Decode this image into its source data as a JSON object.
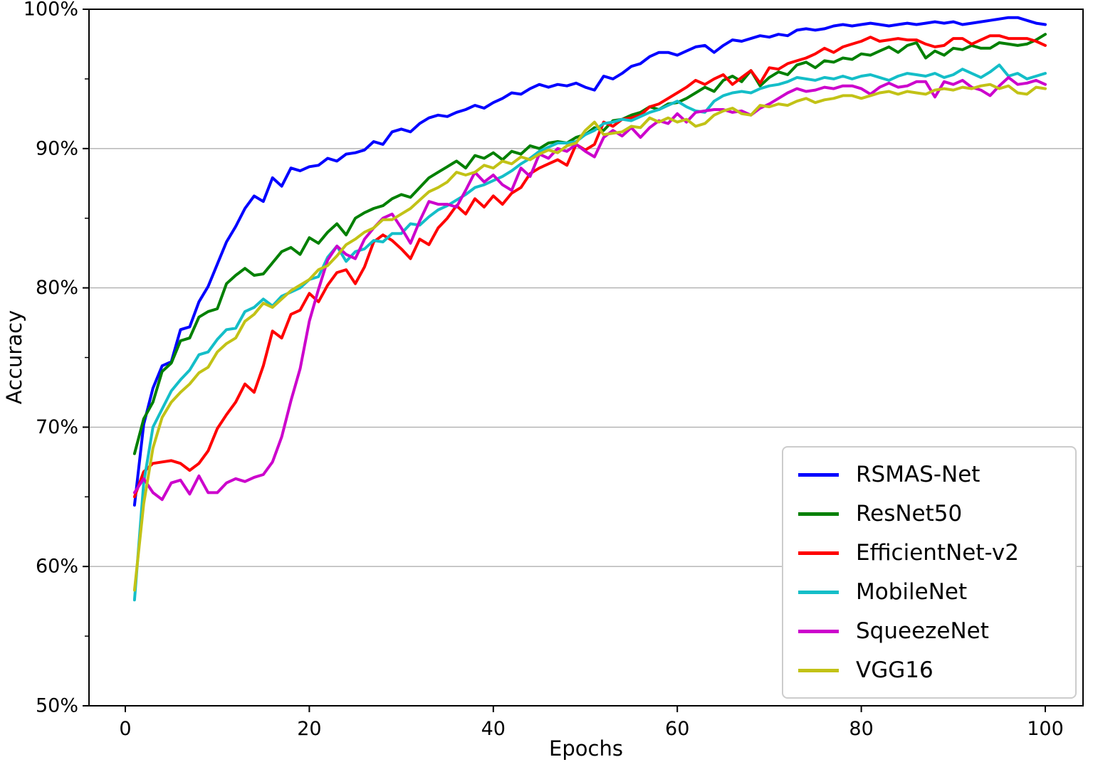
{
  "chart_data": {
    "type": "line",
    "title": "",
    "xlabel": "Epochs",
    "ylabel": "Accuracy",
    "xlim": [
      -4,
      104
    ],
    "ylim": [
      50,
      100
    ],
    "x_ticks": [
      {
        "v": 0,
        "label": "0"
      },
      {
        "v": 20,
        "label": "20"
      },
      {
        "v": 40,
        "label": "40"
      },
      {
        "v": 60,
        "label": "60"
      },
      {
        "v": 80,
        "label": "80"
      },
      {
        "v": 100,
        "label": "100"
      }
    ],
    "y_ticks": [
      {
        "v": 50,
        "label": "50%"
      },
      {
        "v": 60,
        "label": "60%"
      },
      {
        "v": 70,
        "label": "70%"
      },
      {
        "v": 80,
        "label": "80%"
      },
      {
        "v": 90,
        "label": "90%"
      },
      {
        "v": 100,
        "label": "100%"
      }
    ],
    "y_minor_ticks": [
      55,
      65,
      75,
      85,
      95
    ],
    "gridline_values": [
      60,
      70,
      80,
      90
    ],
    "grid_color": "#b0b0b0",
    "axis_color": "#000000",
    "legend_position": "lower right",
    "x_start_epoch": 1,
    "series": [
      {
        "name": "RSMAS-Net",
        "color": "#0000ff",
        "values": [
          64.4,
          70.2,
          72.8,
          74.4,
          74.7,
          77.0,
          77.2,
          79.0,
          80.1,
          81.7,
          83.3,
          84.4,
          85.7,
          86.6,
          86.2,
          87.9,
          87.3,
          88.6,
          88.4,
          88.7,
          88.8,
          89.3,
          89.1,
          89.6,
          89.7,
          89.9,
          90.5,
          90.3,
          91.2,
          91.4,
          91.2,
          91.8,
          92.2,
          92.4,
          92.3,
          92.6,
          92.8,
          93.1,
          92.9,
          93.3,
          93.6,
          94.0,
          93.9,
          94.3,
          94.6,
          94.4,
          94.6,
          94.5,
          94.7,
          94.4,
          94.2,
          95.2,
          95.0,
          95.4,
          95.9,
          96.1,
          96.6,
          96.9,
          96.9,
          96.7,
          97.0,
          97.3,
          97.4,
          96.9,
          97.4,
          97.8,
          97.7,
          97.9,
          98.1,
          98.0,
          98.2,
          98.1,
          98.5,
          98.6,
          98.5,
          98.6,
          98.8,
          98.9,
          98.8,
          98.9,
          99.0,
          98.9,
          98.8,
          98.9,
          99.0,
          98.9,
          99.0,
          99.1,
          99.0,
          99.1,
          98.9,
          99.0,
          99.1,
          99.2,
          99.3,
          99.4,
          99.4,
          99.2,
          99.0,
          98.9
        ]
      },
      {
        "name": "ResNet50",
        "color": "#008000",
        "values": [
          68.1,
          70.6,
          71.8,
          74.0,
          74.6,
          76.2,
          76.4,
          77.9,
          78.3,
          78.5,
          80.3,
          80.9,
          81.4,
          80.9,
          81.0,
          81.8,
          82.6,
          82.9,
          82.4,
          83.6,
          83.2,
          84.0,
          84.6,
          83.8,
          85.0,
          85.4,
          85.7,
          85.9,
          86.4,
          86.7,
          86.5,
          87.2,
          87.9,
          88.3,
          88.7,
          89.1,
          88.6,
          89.5,
          89.3,
          89.7,
          89.2,
          89.8,
          89.6,
          90.2,
          90.0,
          90.4,
          90.5,
          90.4,
          90.8,
          91.0,
          91.5,
          91.3,
          92.0,
          92.1,
          92.4,
          92.6,
          93.0,
          92.8,
          93.2,
          93.3,
          93.6,
          94.0,
          94.4,
          94.1,
          94.9,
          95.2,
          94.8,
          95.6,
          94.5,
          95.1,
          95.5,
          95.3,
          96.0,
          96.2,
          95.8,
          96.3,
          96.2,
          96.5,
          96.4,
          96.8,
          96.7,
          97.0,
          97.3,
          96.9,
          97.4,
          97.6,
          96.5,
          97.0,
          96.7,
          97.2,
          97.1,
          97.4,
          97.2,
          97.2,
          97.6,
          97.5,
          97.4,
          97.5,
          97.8,
          98.2
        ]
      },
      {
        "name": "EfficientNet-v2",
        "color": "#ff0000",
        "values": [
          65.0,
          66.8,
          67.4,
          67.5,
          67.6,
          67.4,
          66.9,
          67.4,
          68.3,
          69.9,
          70.9,
          71.8,
          73.1,
          72.5,
          74.4,
          76.9,
          76.4,
          78.1,
          78.4,
          79.6,
          79.0,
          80.2,
          81.1,
          81.3,
          80.3,
          81.5,
          83.3,
          83.8,
          83.4,
          82.8,
          82.1,
          83.5,
          83.1,
          84.3,
          85.0,
          85.9,
          85.3,
          86.4,
          85.8,
          86.6,
          86.0,
          86.8,
          87.2,
          88.2,
          88.6,
          88.9,
          89.2,
          88.8,
          90.3,
          89.9,
          90.3,
          91.9,
          91.6,
          92.1,
          92.2,
          92.4,
          93.0,
          93.2,
          93.6,
          94.0,
          94.4,
          94.9,
          94.6,
          95.0,
          95.3,
          94.6,
          95.1,
          95.6,
          94.7,
          95.8,
          95.7,
          96.1,
          96.3,
          96.5,
          96.8,
          97.2,
          96.9,
          97.3,
          97.5,
          97.7,
          98.0,
          97.7,
          97.8,
          97.9,
          97.8,
          97.8,
          97.5,
          97.3,
          97.4,
          97.9,
          97.9,
          97.5,
          97.8,
          98.1,
          98.1,
          97.9,
          97.9,
          97.9,
          97.7,
          97.4
        ]
      },
      {
        "name": "MobileNet",
        "color": "#14bec8",
        "values": [
          57.6,
          66.0,
          70.0,
          71.3,
          72.6,
          73.4,
          74.1,
          75.2,
          75.4,
          76.3,
          77.0,
          77.1,
          78.3,
          78.6,
          79.2,
          78.7,
          79.4,
          79.7,
          80.0,
          80.6,
          80.8,
          82.2,
          83.0,
          81.9,
          82.6,
          82.8,
          83.4,
          83.3,
          83.9,
          83.9,
          84.6,
          84.5,
          85.1,
          85.6,
          85.9,
          86.3,
          86.7,
          87.2,
          87.4,
          87.7,
          88.0,
          88.4,
          88.9,
          89.3,
          89.8,
          90.1,
          90.4,
          90.4,
          90.5,
          91.0,
          91.3,
          91.8,
          91.9,
          92.1,
          92.0,
          92.3,
          92.6,
          92.8,
          93.1,
          93.4,
          93.0,
          92.7,
          92.6,
          93.4,
          93.8,
          94.0,
          94.1,
          94.0,
          94.3,
          94.5,
          94.6,
          94.8,
          95.1,
          95.0,
          94.9,
          95.1,
          95.0,
          95.2,
          95.0,
          95.2,
          95.3,
          95.1,
          94.9,
          95.2,
          95.4,
          95.3,
          95.2,
          95.4,
          95.1,
          95.3,
          95.7,
          95.4,
          95.1,
          95.5,
          96.0,
          95.2,
          95.4,
          95.0,
          95.2,
          95.4
        ]
      },
      {
        "name": "SqueezeNet",
        "color": "#cc00cc",
        "values": [
          65.3,
          66.3,
          65.3,
          64.8,
          66.0,
          66.2,
          65.2,
          66.5,
          65.3,
          65.3,
          66.0,
          66.3,
          66.1,
          66.4,
          66.6,
          67.5,
          69.3,
          71.9,
          74.2,
          77.6,
          79.9,
          82.0,
          83.0,
          82.4,
          82.1,
          83.5,
          84.3,
          85.0,
          85.3,
          84.3,
          83.2,
          84.8,
          86.2,
          86.0,
          86.0,
          85.8,
          87.0,
          88.3,
          87.6,
          88.1,
          87.4,
          87.0,
          88.6,
          88.0,
          89.6,
          89.3,
          90.0,
          89.8,
          90.3,
          89.8,
          89.4,
          90.8,
          91.3,
          90.9,
          91.5,
          90.8,
          91.5,
          92.0,
          91.8,
          92.5,
          91.9,
          92.6,
          92.7,
          92.8,
          92.8,
          92.6,
          92.7,
          92.4,
          92.9,
          93.2,
          93.6,
          94.0,
          94.3,
          94.1,
          94.2,
          94.4,
          94.3,
          94.5,
          94.5,
          94.3,
          93.9,
          94.4,
          94.7,
          94.4,
          94.5,
          94.8,
          94.8,
          93.7,
          94.8,
          94.6,
          94.9,
          94.4,
          94.2,
          93.8,
          94.5,
          95.1,
          94.6,
          94.7,
          94.9,
          94.6
        ]
      },
      {
        "name": "VGG16",
        "color": "#c2c216",
        "values": [
          58.3,
          64.5,
          68.5,
          70.7,
          71.8,
          72.5,
          73.1,
          73.9,
          74.3,
          75.4,
          76.0,
          76.4,
          77.6,
          78.1,
          78.9,
          78.6,
          79.2,
          79.8,
          80.2,
          80.6,
          81.3,
          81.6,
          82.3,
          83.1,
          83.5,
          84.0,
          84.3,
          84.9,
          84.9,
          85.3,
          85.7,
          86.3,
          86.9,
          87.2,
          87.6,
          88.3,
          88.1,
          88.3,
          88.8,
          88.6,
          89.1,
          88.9,
          89.4,
          89.2,
          89.6,
          89.9,
          89.7,
          90.2,
          90.4,
          91.3,
          91.9,
          91.0,
          91.1,
          91.2,
          91.6,
          91.5,
          92.2,
          91.9,
          92.2,
          91.9,
          92.1,
          91.6,
          91.8,
          92.4,
          92.7,
          92.9,
          92.5,
          92.4,
          93.1,
          93.0,
          93.2,
          93.1,
          93.4,
          93.6,
          93.3,
          93.5,
          93.6,
          93.8,
          93.8,
          93.6,
          93.8,
          94.0,
          94.1,
          93.9,
          94.1,
          94.0,
          93.9,
          94.2,
          94.3,
          94.2,
          94.4,
          94.3,
          94.5,
          94.6,
          94.3,
          94.5,
          94.0,
          93.9,
          94.4,
          94.3
        ]
      }
    ]
  }
}
